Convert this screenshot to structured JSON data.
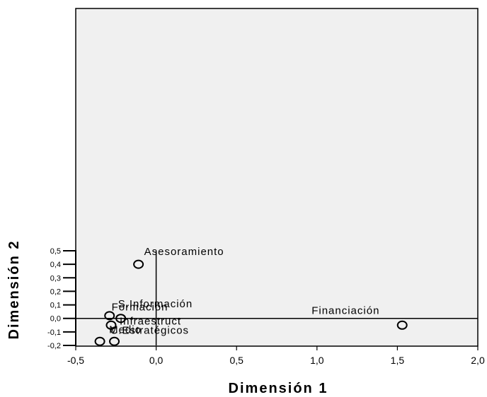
{
  "chart_data": {
    "type": "scatter",
    "title": "",
    "xlabel": "Dimensión 1",
    "ylabel": "Dimensión 2",
    "xlim": [
      -0.5,
      2.0
    ],
    "ylim": [
      -0.2,
      0.5
    ],
    "xticks": [
      -0.5,
      0.0,
      0.5,
      1.0,
      1.5,
      2.0
    ],
    "xtick_labels": [
      "-0,5",
      "0,0",
      "0,5",
      "1,0",
      "1,5",
      "2,0"
    ],
    "yticks": [
      0.5,
      0.4,
      0.3,
      0.2,
      0.1,
      0.0,
      -0.1,
      -0.2
    ],
    "ytick_labels": [
      "0,5",
      "0,4",
      "0,3",
      "0,2",
      "0,1",
      "0,0",
      "-0,1",
      "-0,2"
    ],
    "grid": false,
    "legend": "none",
    "marker": "open-circle",
    "plot_background": "#f0f0f0",
    "points": [
      {
        "label": "Asesoramiento",
        "x": -0.11,
        "y": 0.4
      },
      {
        "label": "S.Información",
        "x": -0.29,
        "y": 0.02
      },
      {
        "label": "Formación",
        "x": -0.22,
        "y": 0.0
      },
      {
        "label": "Infraestruct",
        "x": -0.28,
        "y": -0.05
      },
      {
        "label": "Medio",
        "x": -0.35,
        "y": -0.17
      },
      {
        "label": "C.Estratégicos",
        "x": -0.26,
        "y": -0.17
      },
      {
        "label": "Financiación",
        "x": 1.53,
        "y": -0.05
      }
    ]
  }
}
